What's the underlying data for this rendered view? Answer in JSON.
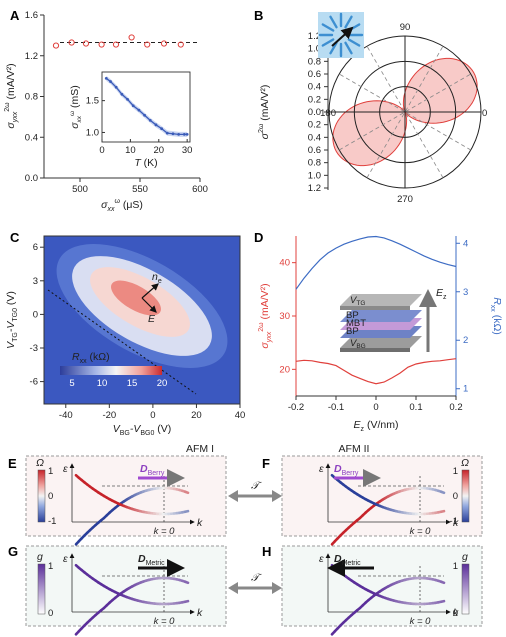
{
  "panel_labels": [
    "A",
    "B",
    "C",
    "D",
    "E",
    "F",
    "G",
    "H"
  ],
  "panel_a": {
    "xlabel_sym": "σ",
    "xlabel_sup": "ω",
    "xlabel_sub": "xx",
    "xlabel_unit": " (μS)",
    "ylabel_sym": "σ",
    "ylabel_sup": "2ω",
    "ylabel_sub": "yxx",
    "ylabel_unit": " (mA/V²)",
    "xticks": [
      "500",
      "550",
      "600"
    ],
    "yticks": [
      "0.0",
      "0.4",
      "0.8",
      "1.2",
      "1.6"
    ],
    "inset": {
      "xlabel_sym": "T",
      "xlabel_unit": " (K)",
      "ylabel_sym": "σ",
      "ylabel_sup": "ω",
      "ylabel_sub": "xx",
      "ylabel_unit": " (mS)",
      "xticks": [
        "0",
        "10",
        "20",
        "30"
      ],
      "yticks": [
        "1.0",
        "1.5"
      ]
    }
  },
  "panel_b": {
    "angle_labels": [
      "90",
      "0",
      "270",
      "180"
    ],
    "rticks": [
      "0.0",
      "0.2",
      "0.4",
      "0.6",
      "0.8",
      "1.0",
      "1.2"
    ],
    "ylabel_sym": "σ",
    "ylabel_sup": "2ω",
    "ylabel_unit": " (mA/V²)"
  },
  "panel_c": {
    "xlabel": "V",
    "xlabel_sub1": "BG",
    "xlabel_mid": "-V",
    "xlabel_sub2": "BG0",
    "xlabel_unit": " (V)",
    "ylabel": "V",
    "ylabel_sub1": "TG",
    "ylabel_mid": "-V",
    "ylabel_sub2": "TG0",
    "ylabel_unit": " (V)",
    "xticks": [
      "-40",
      "-20",
      "0",
      "20",
      "40"
    ],
    "yticks": [
      "6",
      "3",
      "0",
      "-3",
      "-6"
    ],
    "colorbar_label": "R",
    "colorbar_sub": "xx",
    "colorbar_unit": " (kΩ)",
    "colorbar_ticks": [
      "5",
      "10",
      "15",
      "20"
    ],
    "arrow_n": "n",
    "arrow_n_sub": "e",
    "arrow_e": "E"
  },
  "panel_d": {
    "xlabel": "E",
    "xlabel_sub": "z",
    "xlabel_unit": " (V/nm)",
    "xticks": [
      "-0.2",
      "-0.1",
      "0",
      "0.1",
      "0.2"
    ],
    "left_ticks": [
      "20",
      "30",
      "40"
    ],
    "right_ticks": [
      "1",
      "2",
      "3",
      "4"
    ],
    "left_label_sym": "σ",
    "left_label_sup": "2ω",
    "left_label_sub": "yxx",
    "left_label_unit": " (mA/V²)",
    "right_label": "R",
    "right_label_sub": "xx",
    "right_label_unit": " (kΩ)",
    "stack_labels": [
      "V",
      "TG",
      "BP",
      "MBT",
      "BP",
      "V",
      "BG"
    ],
    "ez_label": "E",
    "ez_sub": "z"
  },
  "panels_efgh": {
    "afm1": "AFM I",
    "afm2": "AFM II",
    "epsilon": "ε",
    "k": "k",
    "k0": "k = 0",
    "omega": "Ω",
    "g": "g",
    "omega_ticks": [
      "1",
      "0",
      "-1"
    ],
    "g_ticks": [
      "1",
      "0"
    ],
    "d_berry": "D",
    "d_berry_sub": "Berry",
    "d_metric": "D",
    "d_metric_sub": "Metric",
    "t_symbol": "𝒯"
  },
  "colors": {
    "red": "#e0403c",
    "blue": "#3d6cc4",
    "purple": "#6a4aa8",
    "panel_bg_ef": "#fbf3f3",
    "panel_bg_gh": "#f3f8f6"
  },
  "chart_data": [
    {
      "type": "scatter",
      "panel": "A",
      "x": [
        480,
        493,
        505,
        518,
        530,
        543,
        556,
        570,
        584
      ],
      "y": [
        1.3,
        1.33,
        1.32,
        1.31,
        1.31,
        1.38,
        1.31,
        1.32,
        1.31
      ],
      "reference_line_y": 1.33,
      "xlim": [
        470,
        600
      ],
      "ylim": [
        0,
        1.6
      ]
    },
    {
      "type": "line",
      "panel": "A-inset",
      "x": [
        1.5,
        3,
        5,
        7,
        9,
        11,
        13,
        15,
        17,
        19,
        21,
        23,
        25,
        27,
        29,
        30
      ],
      "y": [
        1.85,
        1.8,
        1.71,
        1.6,
        1.52,
        1.42,
        1.35,
        1.27,
        1.19,
        1.12,
        1.06,
        0.99,
        0.98,
        0.97,
        0.97,
        0.97
      ],
      "xlim": [
        0,
        31
      ],
      "ylim": [
        0.85,
        1.95
      ]
    },
    {
      "type": "line",
      "panel": "B",
      "polar": true,
      "series": [
        {
          "amplitude": 1.25,
          "direction_deg": 30
        }
      ],
      "rlim": [
        0,
        1.2
      ]
    },
    {
      "type": "heatmap",
      "panel": "C",
      "xlim": [
        -50,
        40
      ],
      "ylim": [
        -8,
        7
      ],
      "colorbar_range": [
        3,
        20
      ],
      "peak": {
        "x": -10,
        "y": 1.5,
        "value": 20
      }
    },
    {
      "type": "line",
      "panel": "D",
      "x": [
        -0.2,
        -0.18,
        -0.16,
        -0.14,
        -0.12,
        -0.1,
        -0.08,
        -0.06,
        -0.04,
        -0.02,
        0,
        0.02,
        0.04,
        0.06,
        0.08,
        0.1,
        0.12,
        0.14,
        0.16,
        0.18,
        0.2
      ],
      "series": [
        {
          "axis": "left",
          "values": [
            21.5,
            21.7,
            21.6,
            21.3,
            21.1,
            20.7,
            19.8,
            18.9,
            18.3,
            17.7,
            17.3,
            17.6,
            18.4,
            19.3,
            20.4,
            21.0,
            21.3,
            21.5,
            21.6,
            21.8,
            22.0
          ]
        },
        {
          "axis": "right",
          "values": [
            3.05,
            3.28,
            3.48,
            3.66,
            3.8,
            3.9,
            3.98,
            4.04,
            4.09,
            4.13,
            4.14,
            4.11,
            4.05,
            3.98,
            3.9,
            3.82,
            3.74,
            3.67,
            3.61,
            3.56,
            3.52
          ]
        }
      ],
      "xlim": [
        -0.2,
        0.2
      ],
      "ylim_left": [
        15,
        45
      ],
      "ylim_right": [
        0.85,
        4.15
      ]
    }
  ]
}
